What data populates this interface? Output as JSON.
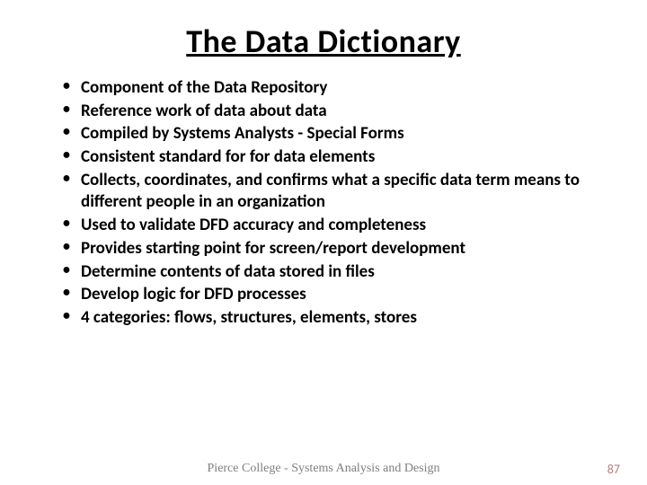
{
  "slide": {
    "title": "The Data Dictionary",
    "title_fontsize": 36,
    "title_color": "#000000",
    "title_underline": true,
    "background_color": "#ffffff",
    "bullets": [
      "Component of the Data Repository",
      "Reference work of data about data",
      "Compiled by Systems Analysts - Special Forms",
      "Consistent standard for for data elements",
      "Collects, coordinates, and confirms what a specific data term means to different people in an organization",
      "Used to validate DFD accuracy and completeness",
      "Provides starting point for screen/report development",
      "Determine contents of data stored in files",
      "Develop logic for DFD processes",
      "4 categories:  flows, structures, elements, stores"
    ],
    "bullet_fontsize": 19,
    "bullet_fontweight": "bold",
    "bullet_color": "#000000",
    "footer_text": "Pierce College - Systems Analysis and Design",
    "footer_color": "#7f7f7f",
    "footer_fontsize": 14,
    "page_number": "87",
    "page_number_color": "#b7807d"
  }
}
